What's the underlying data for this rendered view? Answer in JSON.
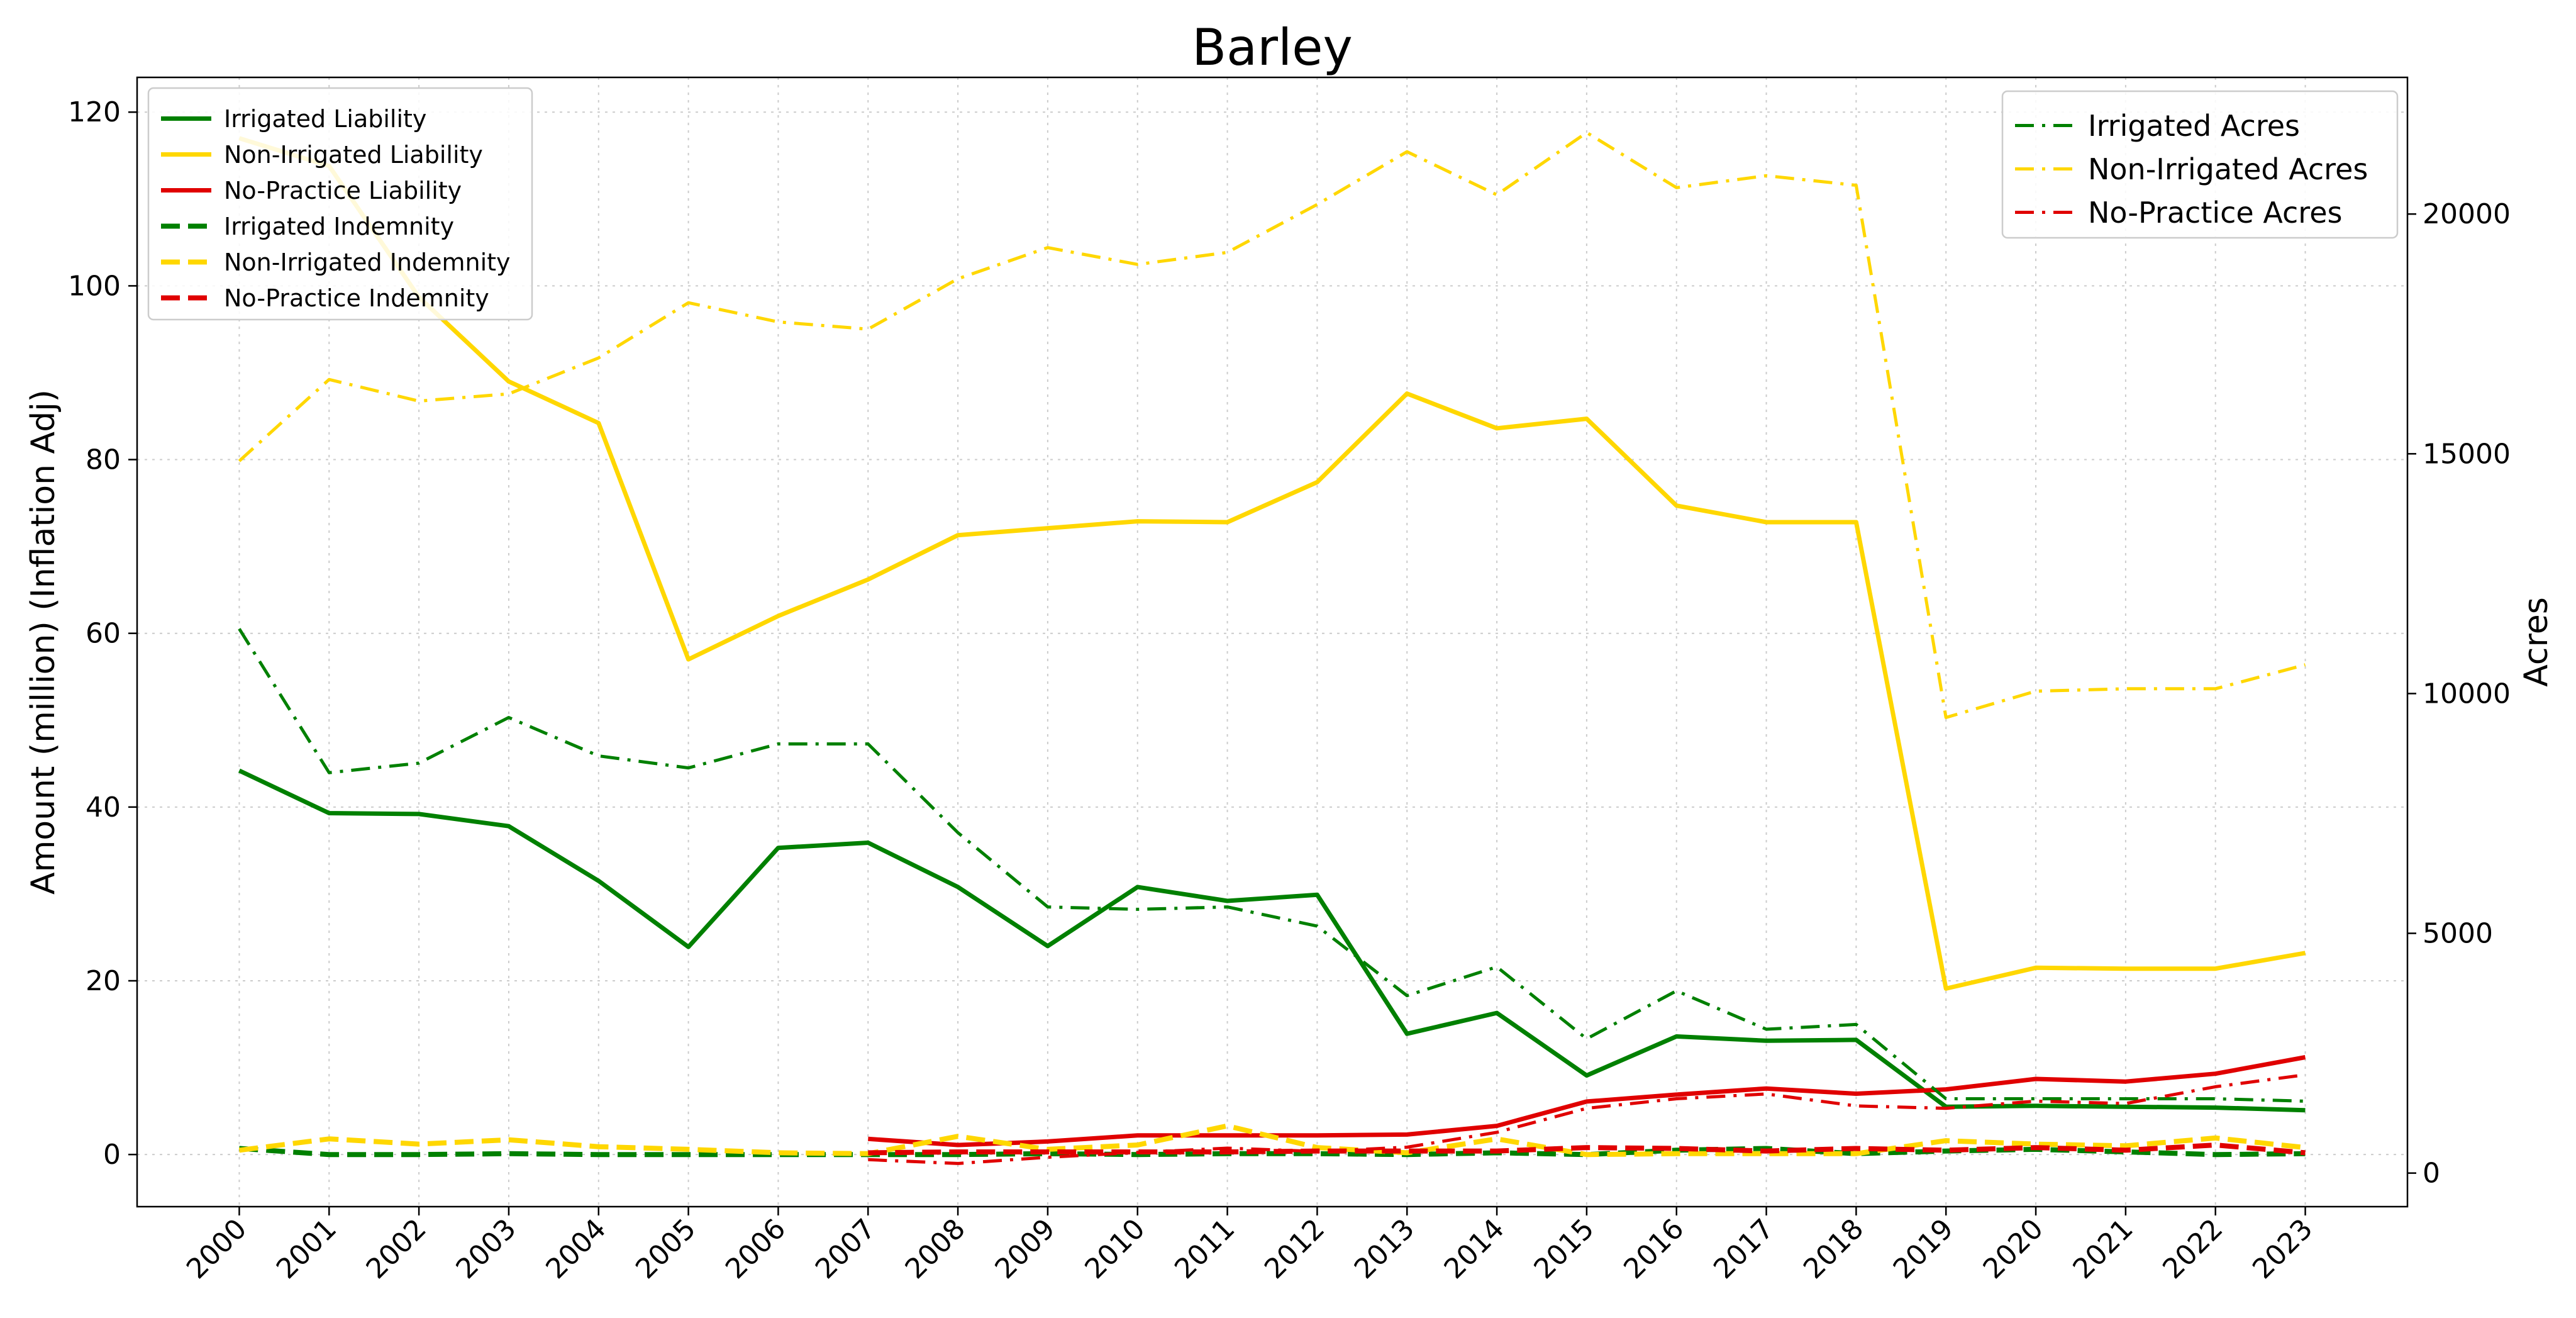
{
  "chart_data": {
    "type": "line",
    "title": "Barley",
    "ylabel": "Amount (million) (Inflation Adj)",
    "y2label": "Acres",
    "x": [
      "2000",
      "2001",
      "2002",
      "2003",
      "2004",
      "2005",
      "2006",
      "2007",
      "2008",
      "2009",
      "2010",
      "2011",
      "2012",
      "2013",
      "2014",
      "2015",
      "2016",
      "2017",
      "2018",
      "2019",
      "2020",
      "2021",
      "2022",
      "2023"
    ],
    "ylim": [
      -6,
      124
    ],
    "y_ticks": [
      0,
      20,
      40,
      60,
      80,
      100,
      120
    ],
    "y2lim": [
      -700,
      22850
    ],
    "y2_ticks": [
      0,
      5000,
      10000,
      15000,
      20000
    ],
    "grid": true,
    "legend_left_position": "upper-left",
    "legend_right_position": "upper-right",
    "series": [
      {
        "name": "Irrigated Liability",
        "axis": "left",
        "style": "solid",
        "color": "#008000",
        "values": [
          44.2,
          39.3,
          39.2,
          37.8,
          31.5,
          23.9,
          35.3,
          35.9,
          30.8,
          24.0,
          30.8,
          29.2,
          29.9,
          13.9,
          16.3,
          9.1,
          13.6,
          13.1,
          13.2,
          5.5,
          5.6,
          5.5,
          5.4,
          5.1
        ]
      },
      {
        "name": "Non-Irrigated Liability",
        "axis": "left",
        "style": "solid",
        "color": "#FFD700",
        "values": [
          117.0,
          113.8,
          98.7,
          89.0,
          84.2,
          57.0,
          62.0,
          66.2,
          71.3,
          72.1,
          72.9,
          72.8,
          77.4,
          87.6,
          83.6,
          84.7,
          74.7,
          72.8,
          72.8,
          19.1,
          21.5,
          21.4,
          21.4,
          23.2
        ]
      },
      {
        "name": "No-Practice Liability",
        "axis": "left",
        "style": "solid",
        "color": "#E00000",
        "values": [
          null,
          null,
          null,
          null,
          null,
          null,
          null,
          1.8,
          1.1,
          1.5,
          2.2,
          2.2,
          2.2,
          2.3,
          3.3,
          6.1,
          6.9,
          7.6,
          7.0,
          7.5,
          8.7,
          8.4,
          9.3,
          11.2
        ]
      },
      {
        "name": "Irrigated Indemnity",
        "axis": "left",
        "style": "dashed",
        "color": "#008000",
        "values": [
          0.7,
          0.0,
          0.0,
          0.1,
          0.0,
          0.0,
          0.0,
          0.0,
          0.0,
          0.1,
          0.0,
          0.1,
          0.1,
          0.0,
          0.2,
          0.0,
          0.5,
          0.7,
          0.1,
          0.4,
          0.6,
          0.3,
          0.0,
          0.1
        ]
      },
      {
        "name": "Non-Irrigated Indemnity",
        "axis": "left",
        "style": "dashed",
        "color": "#FFD700",
        "values": [
          0.5,
          1.8,
          1.2,
          1.7,
          0.9,
          0.6,
          0.2,
          0.1,
          2.1,
          0.6,
          1.1,
          3.3,
          0.8,
          0.2,
          1.8,
          0.0,
          0.1,
          0.1,
          0.1,
          1.6,
          1.2,
          1.0,
          1.9,
          0.8
        ]
      },
      {
        "name": "No-Practice Indemnity",
        "axis": "left",
        "style": "dashed",
        "color": "#E00000",
        "values": [
          null,
          null,
          null,
          null,
          null,
          null,
          null,
          0.2,
          0.3,
          0.3,
          0.3,
          0.3,
          0.4,
          0.4,
          0.4,
          0.8,
          0.7,
          0.4,
          0.7,
          0.5,
          0.8,
          0.5,
          1.1,
          0.2
        ]
      },
      {
        "name": "Irrigated Acres",
        "axis": "right",
        "style": "dashdot",
        "color": "#008000",
        "values": [
          11350,
          8350,
          8550,
          9500,
          8700,
          8450,
          8950,
          8950,
          7100,
          5550,
          5500,
          5550,
          5150,
          3700,
          4300,
          2800,
          3800,
          3000,
          3100,
          1550,
          1550,
          1550,
          1550,
          1500
        ]
      },
      {
        "name": "Non-Irrigated Acres",
        "axis": "right",
        "style": "dashdot",
        "color": "#FFD700",
        "values": [
          14850,
          16550,
          16100,
          16250,
          17000,
          18150,
          17750,
          17600,
          18650,
          19300,
          18950,
          19200,
          20200,
          21300,
          20400,
          21700,
          20550,
          20800,
          20600,
          9500,
          10050,
          10100,
          10100,
          10600
        ]
      },
      {
        "name": "No-Practice Acres",
        "axis": "right",
        "style": "dashdot",
        "color": "#E00000",
        "values": [
          null,
          null,
          null,
          null,
          null,
          null,
          null,
          280,
          200,
          330,
          430,
          520,
          450,
          540,
          850,
          1350,
          1550,
          1650,
          1400,
          1350,
          1500,
          1450,
          1800,
          2050
        ]
      }
    ]
  }
}
